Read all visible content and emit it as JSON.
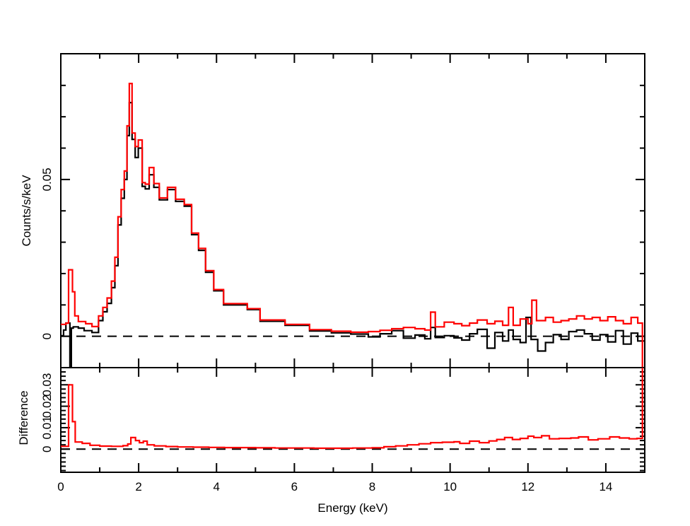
{
  "colors": {
    "data_red": "#ff0000",
    "model_black": "#000000",
    "background": "#ffffff",
    "axis": "#000000"
  },
  "chart_data": {
    "type": "step",
    "grid": false,
    "legend": "none",
    "x_axis": {
      "label": "Energy (keV)",
      "range": [
        0,
        15
      ],
      "major_ticks": [
        0,
        2,
        4,
        6,
        8,
        10,
        12,
        14
      ],
      "tick_labels": [
        "0",
        "2",
        "4",
        "6",
        "8",
        "10",
        "12",
        "14"
      ],
      "minor_ticks": [
        1,
        3,
        5,
        7,
        9,
        11,
        13,
        15
      ]
    },
    "panels": [
      {
        "id": "counts",
        "y_axis": {
          "label": "Counts/s/keV",
          "range": [
            -0.01,
            0.0901
          ],
          "major_ticks": [
            0,
            0.05
          ],
          "tick_labels": [
            "0",
            "0.05"
          ],
          "minor_step": 0.01
        },
        "zero_line_dashed": true,
        "show_x_tick_labels": false,
        "series": [
          {
            "name": "black-histogram",
            "color": "#000000",
            "points": [
              [
                0.0,
                0.0002
              ],
              [
                0.07,
                0.002
              ],
              [
                0.13,
                0.0042
              ],
              [
                0.235,
                -0.03
              ],
              [
                0.27,
                0.0026
              ],
              [
                0.32,
                0.003
              ],
              [
                0.45,
                0.0026
              ],
              [
                0.6,
                0.0018
              ],
              [
                0.8,
                0.0012
              ],
              [
                0.97,
                0.005
              ],
              [
                1.08,
                0.0078
              ],
              [
                1.19,
                0.0105
              ],
              [
                1.3,
                0.0155
              ],
              [
                1.39,
                0.0225
              ],
              [
                1.47,
                0.0355
              ],
              [
                1.55,
                0.044
              ],
              [
                1.63,
                0.05
              ],
              [
                1.7,
                0.064
              ],
              [
                1.76,
                0.0745
              ],
              [
                1.83,
                0.0628
              ],
              [
                1.91,
                0.057
              ],
              [
                1.99,
                0.06
              ],
              [
                2.09,
                0.0478
              ],
              [
                2.17,
                0.047
              ],
              [
                2.27,
                0.0515
              ],
              [
                2.39,
                0.0475
              ],
              [
                2.53,
                0.0435
              ],
              [
                2.74,
                0.0468
              ],
              [
                2.95,
                0.043
              ],
              [
                3.17,
                0.0415
              ],
              [
                3.36,
                0.0324
              ],
              [
                3.54,
                0.0274
              ],
              [
                3.72,
                0.0204
              ],
              [
                3.93,
                0.0145
              ],
              [
                4.18,
                0.01
              ],
              [
                4.79,
                0.0085
              ],
              [
                5.12,
                0.0048
              ],
              [
                5.76,
                0.0035
              ],
              [
                6.39,
                0.0017
              ],
              [
                6.95,
                0.0011
              ],
              [
                7.45,
                0.0007
              ],
              [
                7.9,
                -0.0002
              ],
              [
                8.2,
                0.0008
              ],
              [
                8.5,
                0.0018
              ],
              [
                8.8,
                -0.0006
              ],
              [
                9.1,
                0.0004
              ],
              [
                9.35,
                -0.0008
              ],
              [
                9.5,
                0.0028
              ],
              [
                9.62,
                -0.0004
              ],
              [
                9.85,
                0.0002
              ],
              [
                10.1,
                -0.0005
              ],
              [
                10.3,
                -0.0012
              ],
              [
                10.5,
                0.0008
              ],
              [
                10.7,
                0.0022
              ],
              [
                10.95,
                -0.0038
              ],
              [
                11.15,
                0.0012
              ],
              [
                11.35,
                -0.0015
              ],
              [
                11.5,
                0.002
              ],
              [
                11.62,
                -0.001
              ],
              [
                11.8,
                -0.002
              ],
              [
                11.95,
                0.006
              ],
              [
                12.08,
                -0.001
              ],
              [
                12.25,
                -0.0047
              ],
              [
                12.45,
                -0.002
              ],
              [
                12.65,
                0.0005
              ],
              [
                12.85,
                -0.001
              ],
              [
                13.05,
                0.0015
              ],
              [
                13.25,
                0.002
              ],
              [
                13.45,
                0.0008
              ],
              [
                13.65,
                -0.0012
              ],
              [
                13.85,
                0.0005
              ],
              [
                14.05,
                -0.0018
              ],
              [
                14.25,
                0.0018
              ],
              [
                14.45,
                -0.0025
              ],
              [
                14.65,
                0.001
              ],
              [
                14.82,
                -0.0015
              ],
              [
                15.0,
                -0.0015
              ]
            ]
          },
          {
            "name": "red-histogram",
            "color": "#ff0000",
            "points": [
              [
                0.0,
                0.0038
              ],
              [
                0.13,
                0.0042
              ],
              [
                0.2,
                0.0212
              ],
              [
                0.3,
                0.0142
              ],
              [
                0.36,
                0.0065
              ],
              [
                0.45,
                0.0047
              ],
              [
                0.64,
                0.004
              ],
              [
                0.8,
                0.0031
              ],
              [
                0.97,
                0.0065
              ],
              [
                1.08,
                0.0092
              ],
              [
                1.19,
                0.0122
              ],
              [
                1.3,
                0.0176
              ],
              [
                1.39,
                0.0252
              ],
              [
                1.47,
                0.0381
              ],
              [
                1.55,
                0.0468
              ],
              [
                1.63,
                0.0527
              ],
              [
                1.7,
                0.0671
              ],
              [
                1.76,
                0.0806
              ],
              [
                1.83,
                0.0648
              ],
              [
                1.91,
                0.0605
              ],
              [
                1.99,
                0.0626
              ],
              [
                2.09,
                0.049
              ],
              [
                2.17,
                0.0485
              ],
              [
                2.27,
                0.0538
              ],
              [
                2.39,
                0.0487
              ],
              [
                2.53,
                0.0441
              ],
              [
                2.74,
                0.0475
              ],
              [
                2.95,
                0.0437
              ],
              [
                3.17,
                0.042
              ],
              [
                3.36,
                0.0329
              ],
              [
                3.54,
                0.028
              ],
              [
                3.72,
                0.0209
              ],
              [
                3.93,
                0.0149
              ],
              [
                4.18,
                0.0104
              ],
              [
                4.79,
                0.0088
              ],
              [
                5.12,
                0.0052
              ],
              [
                5.76,
                0.0038
              ],
              [
                6.39,
                0.0021
              ],
              [
                6.95,
                0.0016
              ],
              [
                7.45,
                0.0013
              ],
              [
                7.9,
                0.0015
              ],
              [
                8.2,
                0.0019
              ],
              [
                8.5,
                0.0024
              ],
              [
                8.8,
                0.0028
              ],
              [
                9.1,
                0.0024
              ],
              [
                9.35,
                0.002
              ],
              [
                9.5,
                0.0077
              ],
              [
                9.62,
                0.003
              ],
              [
                9.85,
                0.0045
              ],
              [
                10.1,
                0.004
              ],
              [
                10.3,
                0.0034
              ],
              [
                10.5,
                0.0042
              ],
              [
                10.7,
                0.0052
              ],
              [
                10.95,
                0.004
              ],
              [
                11.15,
                0.0048
              ],
              [
                11.35,
                0.0035
              ],
              [
                11.5,
                0.0092
              ],
              [
                11.62,
                0.0035
              ],
              [
                11.8,
                0.0055
              ],
              [
                12.0,
                0.004
              ],
              [
                12.1,
                0.0115
              ],
              [
                12.22,
                0.005
              ],
              [
                12.45,
                0.006
              ],
              [
                12.65,
                0.0045
              ],
              [
                12.85,
                0.005
              ],
              [
                13.05,
                0.0055
              ],
              [
                13.25,
                0.0065
              ],
              [
                13.45,
                0.0055
              ],
              [
                13.65,
                0.006
              ],
              [
                13.85,
                0.005
              ],
              [
                14.05,
                0.0062
              ],
              [
                14.25,
                0.005
              ],
              [
                14.45,
                0.004
              ],
              [
                14.65,
                0.006
              ],
              [
                14.82,
                0.0042
              ],
              [
                14.94,
                -0.03
              ],
              [
                15.0,
                -0.03
              ]
            ]
          }
        ]
      },
      {
        "id": "difference",
        "y_axis": {
          "label": "Difference",
          "range": [
            -0.0108,
            0.038
          ],
          "major_ticks": [
            0,
            0.01,
            0.02,
            0.03
          ],
          "tick_labels": [
            "0",
            "0.01",
            "0.02",
            "0.03"
          ],
          "minor_step": 0.002
        },
        "zero_line_dashed": true,
        "show_x_tick_labels": true,
        "series": [
          {
            "name": "difference-red",
            "color": "#ff0000",
            "points": [
              [
                0.0,
                0.0013
              ],
              [
                0.2,
                0.03
              ],
              [
                0.3,
                0.0128
              ],
              [
                0.37,
                0.0033
              ],
              [
                0.55,
                0.0027
              ],
              [
                0.75,
                0.0018
              ],
              [
                1.0,
                0.0014
              ],
              [
                1.3,
                0.0013
              ],
              [
                1.6,
                0.0016
              ],
              [
                1.72,
                0.0024
              ],
              [
                1.8,
                0.0054
              ],
              [
                1.92,
                0.004
              ],
              [
                2.02,
                0.003
              ],
              [
                2.12,
                0.0037
              ],
              [
                2.22,
                0.002
              ],
              [
                2.4,
                0.0015
              ],
              [
                2.7,
                0.0012
              ],
              [
                3.0,
                0.001
              ],
              [
                3.4,
                0.0009
              ],
              [
                3.8,
                0.0008
              ],
              [
                4.2,
                0.0007
              ],
              [
                4.6,
                0.0007
              ],
              [
                5.0,
                0.0006
              ],
              [
                5.5,
                0.0005
              ],
              [
                6.0,
                0.0005
              ],
              [
                6.5,
                0.0004
              ],
              [
                7.0,
                0.0004
              ],
              [
                7.5,
                0.0005
              ],
              [
                8.0,
                0.0006
              ],
              [
                8.3,
                0.0011
              ],
              [
                8.6,
                0.0015
              ],
              [
                8.9,
                0.002
              ],
              [
                9.2,
                0.0025
              ],
              [
                9.5,
                0.003
              ],
              [
                9.8,
                0.0032
              ],
              [
                10.1,
                0.0034
              ],
              [
                10.25,
                0.0027
              ],
              [
                10.5,
                0.0037
              ],
              [
                10.75,
                0.003
              ],
              [
                11.0,
                0.0038
              ],
              [
                11.2,
                0.0045
              ],
              [
                11.4,
                0.0054
              ],
              [
                11.6,
                0.0045
              ],
              [
                11.8,
                0.005
              ],
              [
                12.0,
                0.006
              ],
              [
                12.15,
                0.0054
              ],
              [
                12.35,
                0.0062
              ],
              [
                12.55,
                0.0048
              ],
              [
                12.8,
                0.005
              ],
              [
                13.1,
                0.0052
              ],
              [
                13.3,
                0.0057
              ],
              [
                13.55,
                0.0043
              ],
              [
                13.8,
                0.0048
              ],
              [
                14.1,
                0.0057
              ],
              [
                14.35,
                0.0052
              ],
              [
                14.6,
                0.0048
              ],
              [
                14.8,
                0.005
              ],
              [
                14.94,
                0.05
              ],
              [
                15.0,
                0.05
              ]
            ]
          }
        ]
      }
    ]
  }
}
